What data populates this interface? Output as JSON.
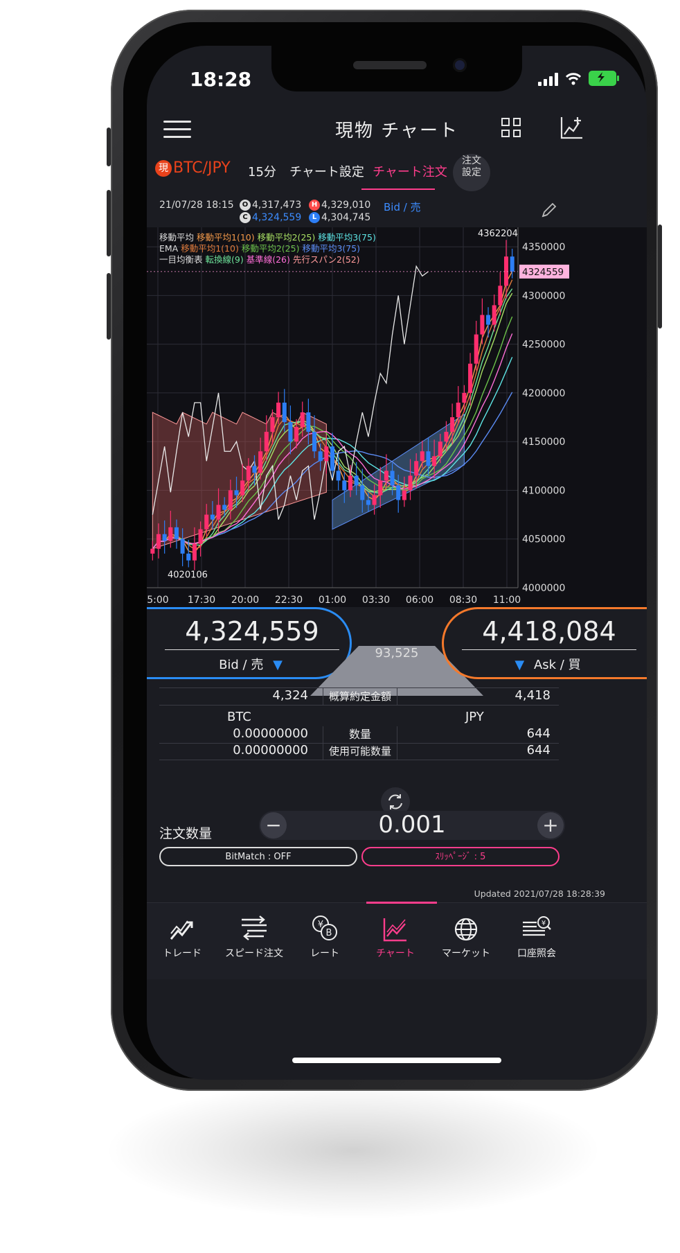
{
  "status": {
    "time": "18:28"
  },
  "header": {
    "title": "現物 チャート"
  },
  "tabs": {
    "pair_badge": "現",
    "pair": "BTC/JPY",
    "interval": "15分",
    "chart_settings": "チャート設定",
    "chart_order": "チャート注文",
    "order_settings_line1": "注文",
    "order_settings_line2": "設定"
  },
  "info": {
    "datetime": "21/07/28 18:15",
    "open_icon": "O",
    "open": "4,317,473",
    "high_icon": "H",
    "high": "4,329,010",
    "close_icon": "C",
    "close": "4,324,559",
    "low_icon": "L",
    "low": "4,304,745",
    "bid_link": "Bid / 売"
  },
  "legend": {
    "ma_label": "移動平均",
    "ma1": "移動平均1(10)",
    "ma2": "移動平均2(25)",
    "ma3": "移動平均3(75)",
    "ema_label": "EMA",
    "ema1": "移動平均1(10)",
    "ema2": "移動平均2(25)",
    "ema3": "移動平均3(75)",
    "ichimoku_label": "一目均衡表",
    "tenkan": "転換線(9)",
    "kijun": "基準線(26)",
    "span2": "先行スパン2(52)"
  },
  "colors": {
    "bull": "#ff2e6e",
    "bear": "#2d7ef5",
    "ma1": "#f59a4a",
    "ma2": "#a8e063",
    "ma3": "#5ee6e6",
    "ema1": "#e07b3c",
    "ema2": "#6cc24a",
    "ema3": "#5b8cf5",
    "tenkan": "#6ee39a",
    "kijun": "#ff6fd8",
    "span2": "#ff9a9a"
  },
  "chart_data": {
    "type": "candlestick",
    "x_tick_labels": [
      "5:00",
      "17:30",
      "20:00",
      "22:30",
      "01:00",
      "03:30",
      "06:00",
      "08:30",
      "11:00"
    ],
    "y_tick_labels": [
      "4350000",
      "4300000",
      "4250000",
      "4200000",
      "4150000",
      "4100000",
      "4050000",
      "4000000"
    ],
    "ylim": [
      4000000,
      4370000
    ],
    "annotations": {
      "high": "4362204",
      "low": "4020106",
      "current": "4324559"
    },
    "series_close": [
      4040000,
      4055000,
      4048000,
      4062000,
      4050000,
      4035000,
      4028000,
      4045000,
      4060000,
      4075000,
      4070000,
      4085000,
      4080000,
      4100000,
      4095000,
      4110000,
      4125000,
      4118000,
      4140000,
      4160000,
      4175000,
      4190000,
      4170000,
      4150000,
      4165000,
      4180000,
      4160000,
      4140000,
      4130000,
      4145000,
      4120000,
      4110000,
      4100000,
      4115000,
      4105000,
      4090000,
      4085000,
      4095000,
      4110000,
      4120000,
      4105000,
      4090000,
      4100000,
      4115000,
      4130000,
      4140000,
      4125000,
      4135000,
      4150000,
      4160000,
      4175000,
      4190000,
      4200000,
      4230000,
      4260000,
      4280000,
      4270000,
      4290000,
      4310000,
      4340000,
      4324559
    ]
  },
  "trade": {
    "bid_price": "4,324,559",
    "bid_label": "Bid / 売",
    "ask_price": "4,418,084",
    "ask_label": "Ask / 買",
    "spread": "93,525",
    "est_bid": "4,324",
    "est_label": "概算約定金額",
    "est_ask": "4,418",
    "col_btc": "BTC",
    "col_jpy": "JPY",
    "qty_btc": "0.00000000",
    "qty_label": "数量",
    "qty_jpy": "644",
    "avail_btc": "0.00000000",
    "avail_label": "使用可能数量",
    "avail_jpy": "644",
    "order_qty_label": "注文数量",
    "order_qty": "0.001",
    "bitmatch": "BitMatch : OFF",
    "slippage": "ｽﾘｯﾍﾟｰｼﾞ : 5",
    "updated": "Updated  2021/07/28 18:28:39"
  },
  "nav": {
    "trade": "トレード",
    "speed": "スピード注文",
    "rate": "レート",
    "chart": "チャート",
    "market": "マーケット",
    "account": "口座照会"
  }
}
